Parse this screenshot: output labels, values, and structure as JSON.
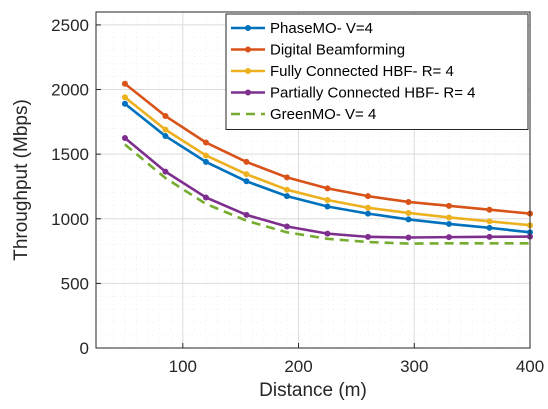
{
  "chart_data": {
    "type": "line",
    "xlabel": "Distance (m)",
    "ylabel": "Throughput (Mbps)",
    "xlim": [
      25,
      400
    ],
    "ylim": [
      0,
      2600
    ],
    "xticks": [
      100,
      200,
      300,
      400
    ],
    "yticks": [
      0,
      500,
      1000,
      1500,
      2000,
      2500
    ],
    "grid": true,
    "minor_grid": true,
    "legend_position": "top-right",
    "x": [
      50,
      85,
      120,
      155,
      190,
      225,
      260,
      295,
      330,
      365,
      400
    ],
    "series": [
      {
        "name": "PhaseMO- V=4",
        "color": "#0072BD",
        "style": "solid",
        "marker": true,
        "values": [
          1890,
          1640,
          1440,
          1290,
          1175,
          1095,
          1040,
          995,
          960,
          930,
          895
        ]
      },
      {
        "name": "Digital Beamforming",
        "color": "#D95319",
        "style": "solid",
        "marker": true,
        "values": [
          2045,
          1795,
          1590,
          1440,
          1320,
          1235,
          1175,
          1130,
          1100,
          1070,
          1040
        ]
      },
      {
        "name": "Fully Connected HBF- R= 4",
        "color": "#EDB120",
        "style": "solid",
        "marker": true,
        "values": [
          1940,
          1690,
          1490,
          1345,
          1225,
          1145,
          1085,
          1045,
          1010,
          980,
          950
        ]
      },
      {
        "name": "Partially Connected HBF- R= 4",
        "color": "#7E2F8E",
        "style": "solid",
        "marker": true,
        "values": [
          1625,
          1365,
          1165,
          1030,
          940,
          885,
          860,
          855,
          858,
          860,
          862
        ]
      },
      {
        "name": "GreenMO- V= 4",
        "color": "#77AC30",
        "style": "dashed",
        "marker": false,
        "values": [
          1575,
          1315,
          1115,
          985,
          895,
          845,
          820,
          808,
          810,
          810,
          810
        ]
      }
    ]
  }
}
